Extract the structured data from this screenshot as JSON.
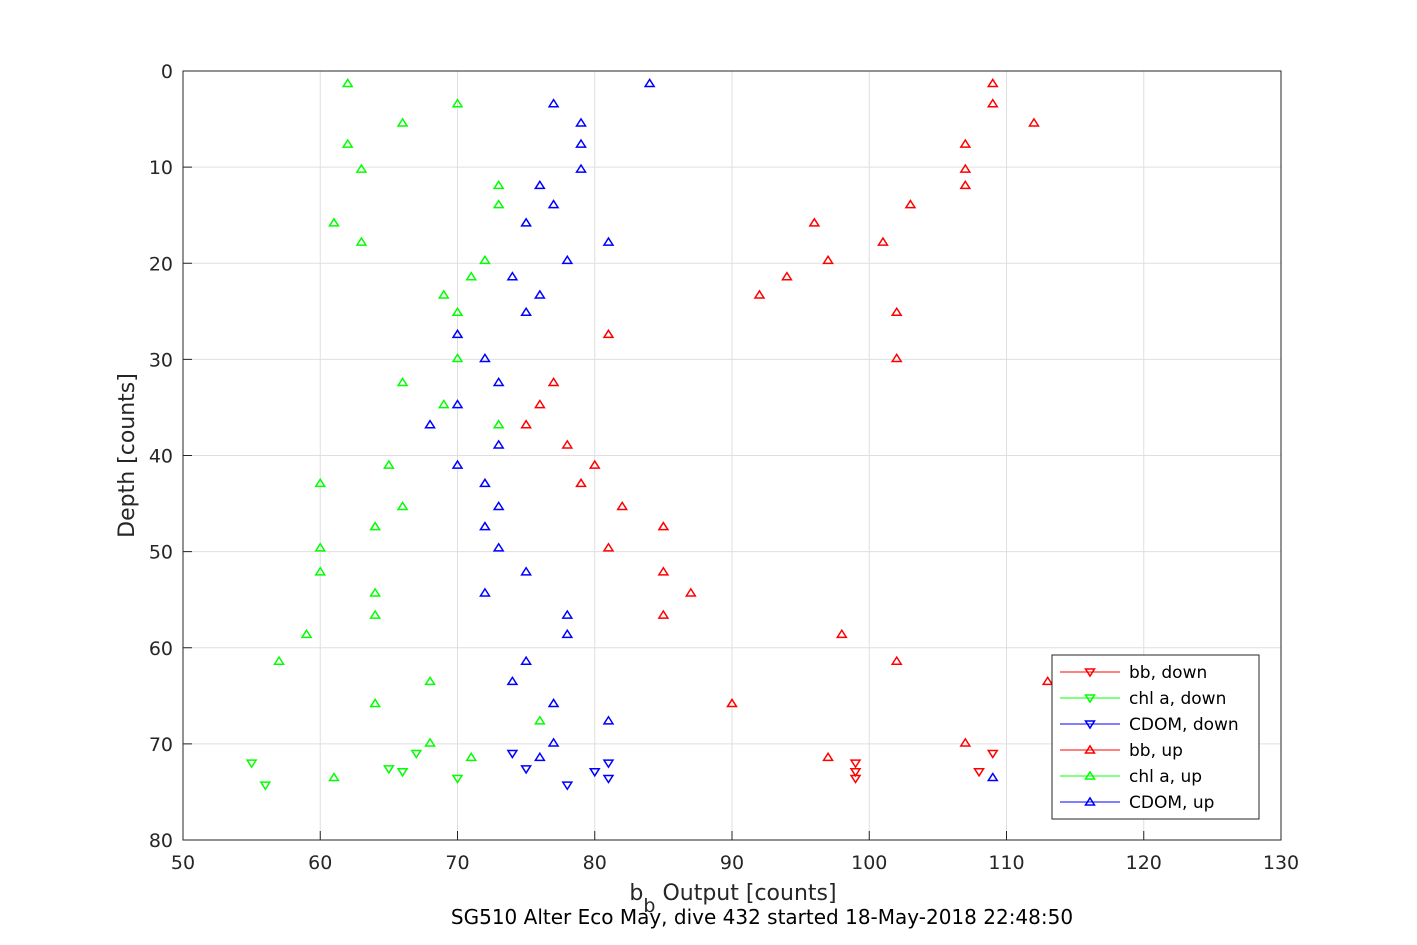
{
  "chart_data": {
    "type": "scatter",
    "xlabel_main": "b",
    "xlabel_sub": "b",
    "xlabel_rest": " Output [counts]",
    "ylabel": "Depth [counts]",
    "caption": "SG510 Alter Eco May, dive 432 started 18-May-2018 22:48:50",
    "xlim": [
      50,
      130
    ],
    "ylim": [
      0,
      80
    ],
    "y_reversed": true,
    "grid": true,
    "legend_placement": "bottom-right",
    "xticks": [
      "50",
      "60",
      "70",
      "80",
      "90",
      "100",
      "110",
      "120",
      "130"
    ],
    "yticks": [
      "0",
      "10",
      "20",
      "30",
      "40",
      "50",
      "60",
      "70",
      "80"
    ],
    "series": [
      {
        "name": "bb, down",
        "color": "#ff0000",
        "marker": "triangle-down",
        "points": [
          [
            109,
            71
          ],
          [
            108,
            72.9
          ],
          [
            99,
            72
          ],
          [
            99,
            72.9
          ],
          [
            99,
            73.6
          ]
        ]
      },
      {
        "name": "chl a, down",
        "color": "#00ff00",
        "marker": "triangle-down",
        "points": [
          [
            55,
            72
          ],
          [
            56,
            74.3
          ],
          [
            65,
            72.6
          ],
          [
            66,
            72.9
          ],
          [
            67,
            71
          ],
          [
            70,
            73.6
          ]
        ]
      },
      {
        "name": "CDOM, down",
        "color": "#0000ff",
        "marker": "triangle-down",
        "points": [
          [
            74,
            71
          ],
          [
            75,
            72.6
          ],
          [
            78,
            74.3
          ],
          [
            80,
            72.9
          ],
          [
            81,
            72
          ],
          [
            81,
            73.6
          ]
        ]
      },
      {
        "name": "bb, up",
        "color": "#ff0000",
        "marker": "triangle-up",
        "points": [
          [
            109,
            1.3
          ],
          [
            109,
            3.4
          ],
          [
            112,
            5.4
          ],
          [
            107,
            7.6
          ],
          [
            107,
            10.2
          ],
          [
            107,
            11.9
          ],
          [
            103,
            13.9
          ],
          [
            96,
            15.8
          ],
          [
            101,
            17.8
          ],
          [
            97,
            19.7
          ],
          [
            94,
            21.4
          ],
          [
            92,
            23.3
          ],
          [
            102,
            25.1
          ],
          [
            81,
            27.4
          ],
          [
            102,
            29.9
          ],
          [
            77,
            32.4
          ],
          [
            76,
            34.7
          ],
          [
            75,
            36.8
          ],
          [
            78,
            38.9
          ],
          [
            80,
            41
          ],
          [
            79,
            42.9
          ],
          [
            82,
            45.3
          ],
          [
            85,
            47.4
          ],
          [
            81,
            49.6
          ],
          [
            85,
            52.1
          ],
          [
            87,
            54.3
          ],
          [
            85,
            56.6
          ],
          [
            98,
            58.6
          ],
          [
            102,
            61.4
          ],
          [
            113,
            63.5
          ],
          [
            90,
            65.8
          ],
          [
            107,
            69.9
          ],
          [
            97,
            71.4
          ]
        ]
      },
      {
        "name": "chl a, up",
        "color": "#00ff00",
        "marker": "triangle-up",
        "points": [
          [
            62,
            1.3
          ],
          [
            70,
            3.4
          ],
          [
            66,
            5.4
          ],
          [
            62,
            7.6
          ],
          [
            63,
            10.2
          ],
          [
            73,
            11.9
          ],
          [
            73,
            13.9
          ],
          [
            61,
            15.8
          ],
          [
            63,
            17.8
          ],
          [
            72,
            19.7
          ],
          [
            71,
            21.4
          ],
          [
            69,
            23.3
          ],
          [
            70,
            25.1
          ],
          [
            70,
            29.9
          ],
          [
            66,
            32.4
          ],
          [
            69,
            34.7
          ],
          [
            73,
            36.8
          ],
          [
            65,
            41
          ],
          [
            60,
            42.9
          ],
          [
            66,
            45.3
          ],
          [
            64,
            47.4
          ],
          [
            60,
            49.6
          ],
          [
            60,
            52.1
          ],
          [
            64,
            54.3
          ],
          [
            64,
            56.6
          ],
          [
            59,
            58.6
          ],
          [
            57,
            61.4
          ],
          [
            68,
            63.5
          ],
          [
            64,
            65.8
          ],
          [
            76,
            67.6
          ],
          [
            68,
            69.9
          ],
          [
            71,
            71.4
          ],
          [
            61,
            73.5
          ]
        ]
      },
      {
        "name": "CDOM, up",
        "color": "#0000ff",
        "marker": "triangle-up",
        "points": [
          [
            84,
            1.3
          ],
          [
            77,
            3.4
          ],
          [
            79,
            5.4
          ],
          [
            79,
            7.6
          ],
          [
            79,
            10.2
          ],
          [
            76,
            11.9
          ],
          [
            77,
            13.9
          ],
          [
            75,
            15.8
          ],
          [
            81,
            17.8
          ],
          [
            78,
            19.7
          ],
          [
            74,
            21.4
          ],
          [
            76,
            23.3
          ],
          [
            75,
            25.1
          ],
          [
            70,
            27.4
          ],
          [
            72,
            29.9
          ],
          [
            73,
            32.4
          ],
          [
            70,
            34.7
          ],
          [
            68,
            36.8
          ],
          [
            73,
            38.9
          ],
          [
            70,
            41
          ],
          [
            72,
            42.9
          ],
          [
            73,
            45.3
          ],
          [
            72,
            47.4
          ],
          [
            73,
            49.6
          ],
          [
            75,
            52.1
          ],
          [
            72,
            54.3
          ],
          [
            78,
            56.6
          ],
          [
            78,
            58.6
          ],
          [
            75,
            61.4
          ],
          [
            74,
            63.5
          ],
          [
            77,
            65.8
          ],
          [
            81,
            67.6
          ],
          [
            77,
            69.9
          ],
          [
            76,
            71.4
          ],
          [
            109,
            73.5
          ]
        ]
      }
    ]
  }
}
